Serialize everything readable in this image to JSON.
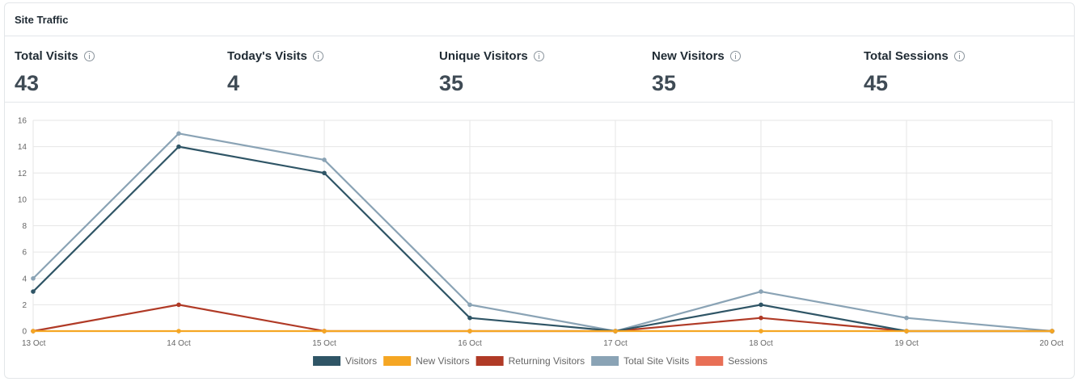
{
  "card": {
    "title": "Site Traffic"
  },
  "stats": [
    {
      "label": "Total Visits",
      "value": "43"
    },
    {
      "label": "Today's Visits",
      "value": "4"
    },
    {
      "label": "Unique Visitors",
      "value": "35"
    },
    {
      "label": "New Visitors",
      "value": "35"
    },
    {
      "label": "Total Sessions",
      "value": "45"
    }
  ],
  "chart_data": {
    "type": "line",
    "x": [
      "13 Oct",
      "14 Oct",
      "15 Oct",
      "16 Oct",
      "17 Oct",
      "18 Oct",
      "19 Oct",
      "20 Oct"
    ],
    "ylim": [
      0,
      16
    ],
    "yticks": [
      0,
      2,
      4,
      6,
      8,
      10,
      12,
      14,
      16
    ],
    "grid": true,
    "legend_position": "bottom",
    "series": [
      {
        "name": "Visitors",
        "color": "#2f5566",
        "values": [
          3,
          14,
          12,
          1,
          0,
          2,
          0,
          0
        ]
      },
      {
        "name": "New Visitors",
        "color": "#f5a623",
        "values": [
          0,
          0,
          0,
          0,
          0,
          0,
          0,
          0
        ]
      },
      {
        "name": "Returning Visitors",
        "color": "#b03a26",
        "values": [
          0,
          2,
          0,
          0,
          0,
          1,
          0,
          0
        ]
      },
      {
        "name": "Total Site Visits",
        "color": "#8aa3b5",
        "values": [
          4,
          15,
          13,
          2,
          0,
          3,
          1,
          0
        ]
      },
      {
        "name": "Sessions",
        "color": "#e86f56",
        "values": [
          null,
          null,
          null,
          null,
          null,
          null,
          null,
          null
        ]
      }
    ],
    "draw_order": [
      4,
      3,
      2,
      0,
      1
    ]
  }
}
